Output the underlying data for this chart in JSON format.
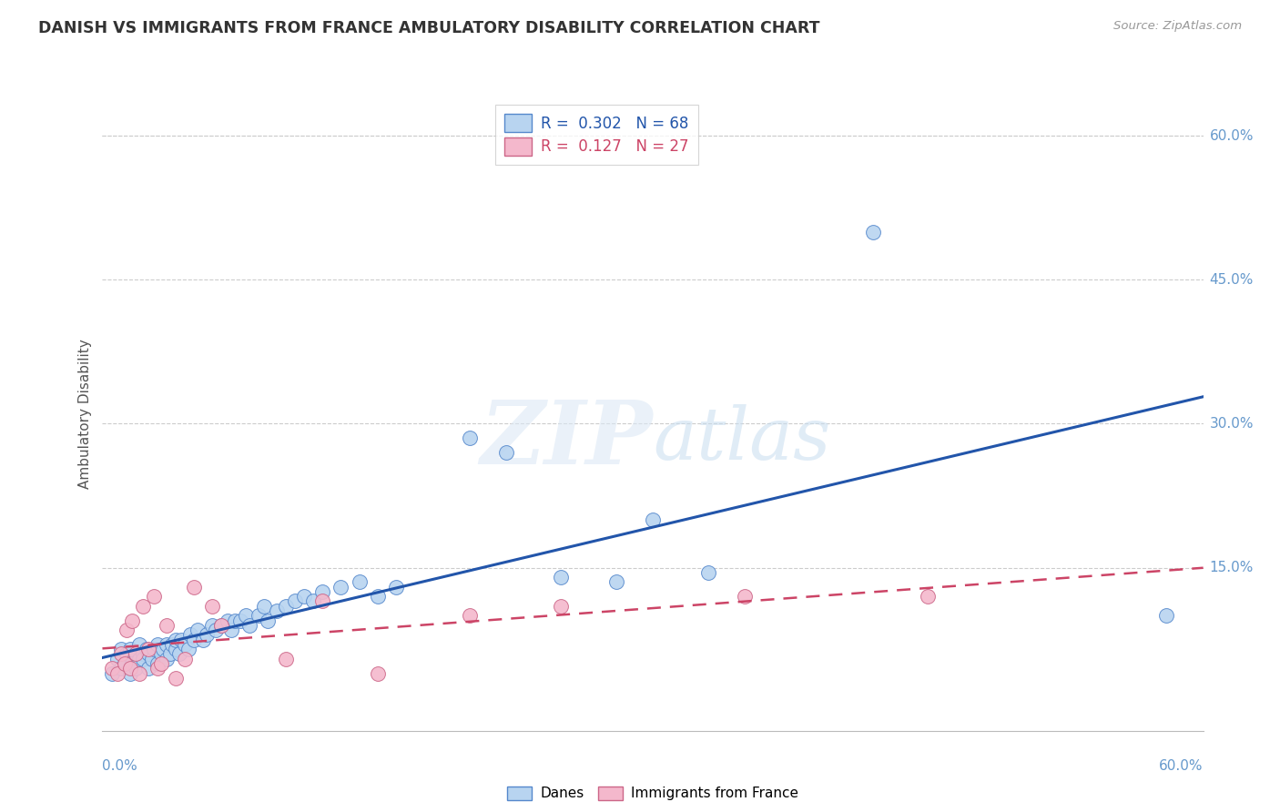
{
  "title": "DANISH VS IMMIGRANTS FROM FRANCE AMBULATORY DISABILITY CORRELATION CHART",
  "source": "Source: ZipAtlas.com",
  "ylabel": "Ambulatory Disability",
  "right_yticks": [
    0.15,
    0.3,
    0.45,
    0.6
  ],
  "right_yticklabels": [
    "15.0%",
    "30.0%",
    "45.0%",
    "60.0%"
  ],
  "xlim": [
    0.0,
    0.6
  ],
  "ylim": [
    -0.02,
    0.64
  ],
  "danes_R": 0.302,
  "danes_N": 68,
  "immigrants_R": 0.127,
  "immigrants_N": 27,
  "danes_color": "#b8d4f0",
  "danes_edge_color": "#5588cc",
  "danes_line_color": "#2255aa",
  "immigrants_color": "#f4b8cc",
  "immigrants_edge_color": "#cc6688",
  "immigrants_line_color": "#cc4466",
  "background_color": "#ffffff",
  "grid_color": "#cccccc",
  "danes_x": [
    0.005,
    0.008,
    0.01,
    0.01,
    0.012,
    0.013,
    0.015,
    0.015,
    0.016,
    0.018,
    0.02,
    0.02,
    0.022,
    0.022,
    0.024,
    0.025,
    0.025,
    0.027,
    0.028,
    0.03,
    0.03,
    0.032,
    0.033,
    0.035,
    0.035,
    0.037,
    0.038,
    0.04,
    0.04,
    0.042,
    0.043,
    0.045,
    0.047,
    0.048,
    0.05,
    0.052,
    0.055,
    0.057,
    0.06,
    0.062,
    0.065,
    0.068,
    0.07,
    0.072,
    0.075,
    0.078,
    0.08,
    0.085,
    0.088,
    0.09,
    0.095,
    0.1,
    0.105,
    0.11,
    0.115,
    0.12,
    0.13,
    0.14,
    0.15,
    0.16,
    0.2,
    0.22,
    0.25,
    0.28,
    0.3,
    0.33,
    0.42,
    0.58
  ],
  "danes_y": [
    0.04,
    0.055,
    0.045,
    0.065,
    0.05,
    0.06,
    0.04,
    0.065,
    0.05,
    0.045,
    0.055,
    0.07,
    0.06,
    0.055,
    0.065,
    0.045,
    0.06,
    0.055,
    0.065,
    0.05,
    0.07,
    0.06,
    0.065,
    0.055,
    0.07,
    0.06,
    0.07,
    0.065,
    0.075,
    0.06,
    0.075,
    0.07,
    0.065,
    0.08,
    0.075,
    0.085,
    0.075,
    0.08,
    0.09,
    0.085,
    0.09,
    0.095,
    0.085,
    0.095,
    0.095,
    0.1,
    0.09,
    0.1,
    0.11,
    0.095,
    0.105,
    0.11,
    0.115,
    0.12,
    0.115,
    0.125,
    0.13,
    0.135,
    0.12,
    0.13,
    0.285,
    0.27,
    0.14,
    0.135,
    0.2,
    0.145,
    0.5,
    0.1
  ],
  "immigrants_x": [
    0.005,
    0.008,
    0.01,
    0.012,
    0.013,
    0.015,
    0.016,
    0.018,
    0.02,
    0.022,
    0.025,
    0.028,
    0.03,
    0.032,
    0.035,
    0.04,
    0.045,
    0.05,
    0.06,
    0.065,
    0.1,
    0.12,
    0.15,
    0.2,
    0.25,
    0.35,
    0.45
  ],
  "immigrants_y": [
    0.045,
    0.04,
    0.06,
    0.05,
    0.085,
    0.045,
    0.095,
    0.06,
    0.04,
    0.11,
    0.065,
    0.12,
    0.045,
    0.05,
    0.09,
    0.035,
    0.055,
    0.13,
    0.11,
    0.09,
    0.055,
    0.115,
    0.04,
    0.1,
    0.11,
    0.12,
    0.12
  ],
  "watermark_zip": "ZIP",
  "watermark_atlas": "atlas",
  "legend_danes_label": "Danes",
  "legend_immigrants_label": "Immigrants from France"
}
